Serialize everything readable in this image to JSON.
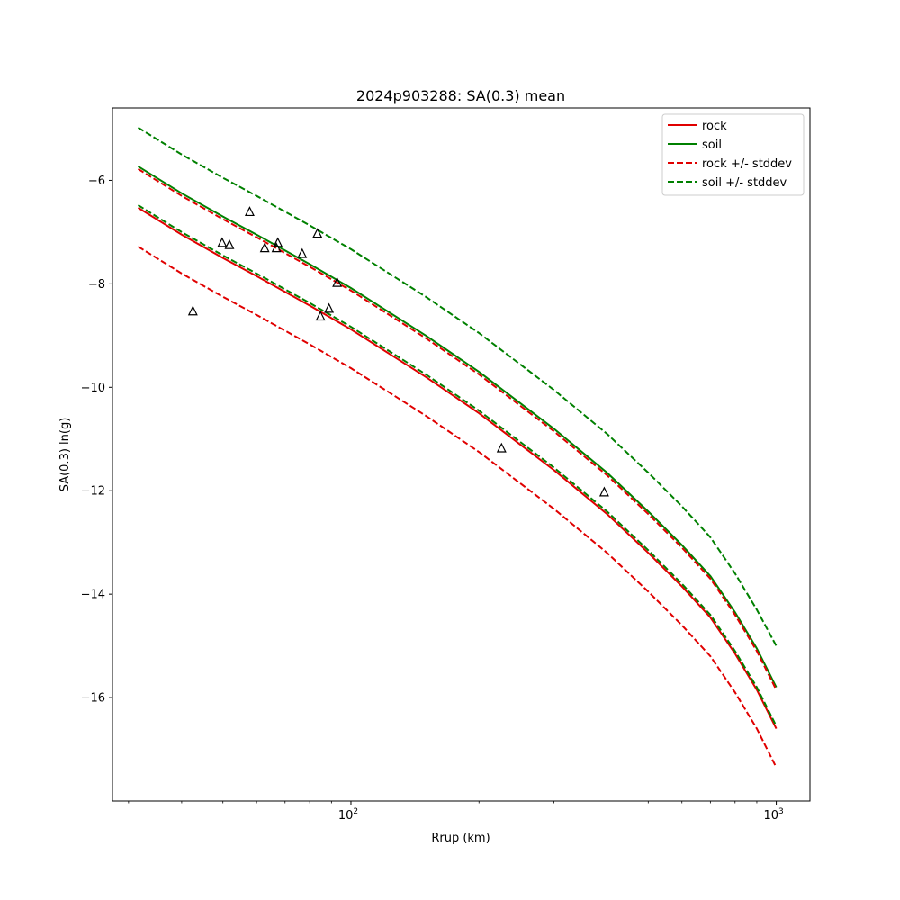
{
  "chart_data": {
    "type": "line",
    "title": "2024p903288: SA(0.3) mean",
    "xlabel": "Rrup (km)",
    "ylabel": "SA(0.3) ln(g)",
    "xscale": "log",
    "xlim": [
      27.5,
      1200
    ],
    "ylim": [
      -18.0,
      -4.6
    ],
    "grid": false,
    "legend_position": "top-right",
    "x_ticks": [
      {
        "value": 100,
        "label": "10",
        "exp": "2"
      },
      {
        "value": 1000,
        "label": "10",
        "exp": "3"
      }
    ],
    "y_ticks": [
      {
        "value": -6,
        "label": "−6"
      },
      {
        "value": -8,
        "label": "−8"
      },
      {
        "value": -10,
        "label": "−10"
      },
      {
        "value": -12,
        "label": "−12"
      },
      {
        "value": -14,
        "label": "−14"
      },
      {
        "value": -16,
        "label": "−16"
      }
    ],
    "series": [
      {
        "name": "rock",
        "color": "#e00000",
        "style": "solid",
        "x": [
          31.6,
          40,
          50,
          60,
          80,
          100,
          150,
          200,
          300,
          400,
          500,
          600,
          700,
          800,
          900,
          1000
        ],
        "y": [
          -6.53,
          -7.05,
          -7.5,
          -7.85,
          -8.42,
          -8.88,
          -9.8,
          -10.5,
          -11.6,
          -12.45,
          -13.2,
          -13.85,
          -14.45,
          -15.15,
          -15.85,
          -16.6
        ]
      },
      {
        "name": "soil",
        "color": "#008000",
        "style": "solid",
        "x": [
          31.6,
          40,
          50,
          60,
          80,
          100,
          150,
          200,
          300,
          400,
          500,
          600,
          700,
          800,
          900,
          1000
        ],
        "y": [
          -5.73,
          -6.25,
          -6.7,
          -7.05,
          -7.62,
          -8.08,
          -9.0,
          -9.7,
          -10.8,
          -11.65,
          -12.4,
          -13.05,
          -13.65,
          -14.35,
          -15.05,
          -15.8
        ]
      },
      {
        "name": "rock +/- stddev",
        "color": "#e00000",
        "style": "dashed",
        "x": [
          31.6,
          40,
          50,
          60,
          80,
          100,
          150,
          200,
          300,
          400,
          500,
          600,
          700,
          800,
          900,
          1000
        ],
        "y": [
          -5.78,
          -6.3,
          -6.75,
          -7.1,
          -7.67,
          -8.13,
          -9.05,
          -9.75,
          -10.85,
          -11.7,
          -12.45,
          -13.1,
          -13.7,
          -14.4,
          -15.1,
          -15.85
        ]
      },
      {
        "name": "rock +/- stddev",
        "color": "#e00000",
        "style": "dashed",
        "legend": false,
        "x": [
          31.6,
          40,
          50,
          60,
          80,
          100,
          150,
          200,
          300,
          400,
          500,
          600,
          700,
          800,
          900,
          1000
        ],
        "y": [
          -7.28,
          -7.8,
          -8.25,
          -8.6,
          -9.17,
          -9.63,
          -10.55,
          -11.25,
          -12.35,
          -13.2,
          -13.95,
          -14.6,
          -15.2,
          -15.9,
          -16.6,
          -17.35
        ]
      },
      {
        "name": "soil +/- stddev",
        "color": "#008000",
        "style": "dashed",
        "x": [
          31.6,
          40,
          50,
          60,
          80,
          100,
          150,
          200,
          300,
          400,
          500,
          600,
          700,
          800,
          900,
          1000
        ],
        "y": [
          -4.98,
          -5.5,
          -5.95,
          -6.3,
          -6.87,
          -7.33,
          -8.25,
          -8.95,
          -10.05,
          -10.9,
          -11.65,
          -12.3,
          -12.9,
          -13.6,
          -14.3,
          -15.0
        ]
      },
      {
        "name": "soil +/- stddev",
        "color": "#008000",
        "style": "dashed",
        "legend": false,
        "x": [
          31.6,
          40,
          50,
          60,
          80,
          100,
          150,
          200,
          300,
          400,
          500,
          600,
          700,
          800,
          900,
          1000
        ],
        "y": [
          -6.48,
          -7.0,
          -7.45,
          -7.8,
          -8.37,
          -8.83,
          -9.75,
          -10.45,
          -11.55,
          -12.4,
          -13.15,
          -13.8,
          -14.4,
          -15.1,
          -15.8,
          -16.55
        ]
      }
    ],
    "observations": {
      "marker": "open-triangle",
      "color": "#000000",
      "points": [
        {
          "x": 42.5,
          "y": -8.52
        },
        {
          "x": 49.8,
          "y": -7.2
        },
        {
          "x": 51.8,
          "y": -7.24
        },
        {
          "x": 57.8,
          "y": -6.6
        },
        {
          "x": 62.7,
          "y": -7.3
        },
        {
          "x": 66.8,
          "y": -7.3
        },
        {
          "x": 67.3,
          "y": -7.2
        },
        {
          "x": 76.8,
          "y": -7.41
        },
        {
          "x": 83.4,
          "y": -7.02
        },
        {
          "x": 84.8,
          "y": -8.62
        },
        {
          "x": 88.8,
          "y": -8.47
        },
        {
          "x": 92.8,
          "y": -7.97
        },
        {
          "x": 226,
          "y": -11.17
        },
        {
          "x": 394,
          "y": -12.02
        }
      ]
    }
  }
}
